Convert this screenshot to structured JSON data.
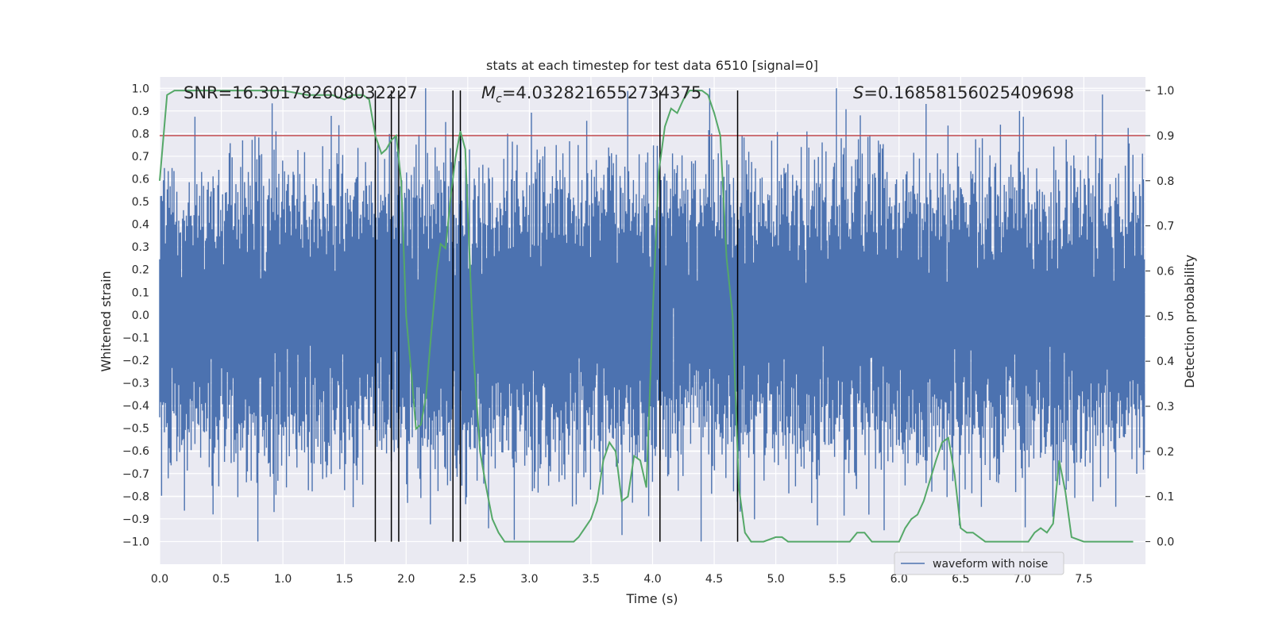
{
  "chart_data": {
    "type": "line",
    "title": "stats at each timestep for test data 6510 [signal=0]",
    "xlabel": "Time (s)",
    "ylabel": "Whitened strain",
    "y2label": "Detection probability",
    "xlim": [
      0.0,
      8.0
    ],
    "ylim": [
      -1.1,
      1.05
    ],
    "y2lim": [
      -0.05,
      1.03
    ],
    "x_ticks": [
      "0.0",
      "0.5",
      "1.0",
      "1.5",
      "2.0",
      "2.5",
      "3.0",
      "3.5",
      "4.0",
      "4.5",
      "5.0",
      "5.5",
      "6.0",
      "6.5",
      "7.0",
      "7.5"
    ],
    "y_ticks": [
      "1.0",
      "0.9",
      "0.8",
      "0.7",
      "0.6",
      "0.5",
      "0.4",
      "0.3",
      "0.2",
      "0.1",
      "0.0",
      "−0.1",
      "−0.2",
      "−0.3",
      "−0.4",
      "−0.5",
      "−0.6",
      "−0.7",
      "−0.8",
      "−0.9",
      "−1.0"
    ],
    "y2_ticks": [
      "1.0",
      "0.9",
      "0.8",
      "0.7",
      "0.6",
      "0.5",
      "0.4",
      "0.3",
      "0.2",
      "0.1",
      "0.0"
    ],
    "grid": true,
    "legend": {
      "placement": "lower-right",
      "entries": [
        "waveform with noise"
      ]
    },
    "annotations": {
      "snr": "SNR=16.301782608032227",
      "mc_symbol": "M",
      "mc_sub": "c",
      "mc_value": "=4.0328216552734375",
      "s_symbol": "S",
      "s_value": "=0.16858156025409698"
    },
    "threshold": 0.9,
    "vertical_lines": [
      1.75,
      1.88,
      1.94,
      2.38,
      2.44,
      4.06,
      4.69
    ],
    "series": [
      {
        "name": "waveform with noise",
        "axis": "left",
        "kind": "noise",
        "sample_rate": 2048,
        "duration": 8.0,
        "amplitude_std": 0.28,
        "max_abs_peak": 1.0,
        "color": "#4c72b0"
      },
      {
        "axis": "right",
        "color": "#55a868",
        "x": [
          0.0,
          0.06,
          0.12,
          0.2,
          0.3,
          0.5,
          0.8,
          1.0,
          1.2,
          1.4,
          1.5,
          1.56,
          1.6,
          1.65,
          1.7,
          1.75,
          1.8,
          1.84,
          1.88,
          1.92,
          1.96,
          2.0,
          2.05,
          2.08,
          2.12,
          2.16,
          2.2,
          2.25,
          2.28,
          2.32,
          2.36,
          2.4,
          2.44,
          2.48,
          2.52,
          2.55,
          2.6,
          2.65,
          2.7,
          2.75,
          2.8,
          2.85,
          2.9,
          3.0,
          3.1,
          3.2,
          3.3,
          3.36,
          3.4,
          3.45,
          3.5,
          3.55,
          3.6,
          3.65,
          3.7,
          3.75,
          3.8,
          3.85,
          3.9,
          3.95,
          4.0,
          4.05,
          4.1,
          4.15,
          4.2,
          4.25,
          4.3,
          4.35,
          4.4,
          4.45,
          4.5,
          4.55,
          4.6,
          4.65,
          4.7,
          4.75,
          4.8,
          4.85,
          4.9,
          5.0,
          5.05,
          5.1,
          5.2,
          5.3,
          5.4,
          5.5,
          5.55,
          5.6,
          5.66,
          5.72,
          5.78,
          5.85,
          5.92,
          6.0,
          6.05,
          6.1,
          6.15,
          6.2,
          6.3,
          6.35,
          6.4,
          6.45,
          6.5,
          6.55,
          6.6,
          6.7,
          6.8,
          6.9,
          7.0,
          7.05,
          7.1,
          7.15,
          7.2,
          7.25,
          7.3,
          7.35,
          7.4,
          7.5,
          7.6,
          7.7,
          7.8,
          7.9
        ],
        "y": [
          0.8,
          0.99,
          1.0,
          1.0,
          1.0,
          1.0,
          1.0,
          1.0,
          0.99,
          0.99,
          0.98,
          0.99,
          0.99,
          0.99,
          0.98,
          0.9,
          0.86,
          0.87,
          0.89,
          0.9,
          0.8,
          0.5,
          0.35,
          0.25,
          0.26,
          0.32,
          0.45,
          0.6,
          0.66,
          0.65,
          0.76,
          0.85,
          0.91,
          0.87,
          0.6,
          0.4,
          0.2,
          0.12,
          0.05,
          0.02,
          0.0,
          0.0,
          0.0,
          0.0,
          0.0,
          0.0,
          0.0,
          0.0,
          0.01,
          0.03,
          0.05,
          0.09,
          0.18,
          0.22,
          0.2,
          0.09,
          0.1,
          0.19,
          0.18,
          0.12,
          0.5,
          0.82,
          0.92,
          0.96,
          0.95,
          0.98,
          1.0,
          1.0,
          1.0,
          0.99,
          0.95,
          0.9,
          0.63,
          0.5,
          0.12,
          0.02,
          0.0,
          0.0,
          0.0,
          0.01,
          0.01,
          0.0,
          0.0,
          0.0,
          0.0,
          0.0,
          0.0,
          0.0,
          0.02,
          0.02,
          0.0,
          0.0,
          0.0,
          0.0,
          0.03,
          0.05,
          0.06,
          0.09,
          0.18,
          0.22,
          0.23,
          0.15,
          0.03,
          0.02,
          0.02,
          0.0,
          0.0,
          0.0,
          0.0,
          0.0,
          0.02,
          0.03,
          0.02,
          0.04,
          0.18,
          0.11,
          0.01,
          0.0,
          0.0,
          0.0,
          0.0,
          0.0
        ]
      }
    ]
  }
}
